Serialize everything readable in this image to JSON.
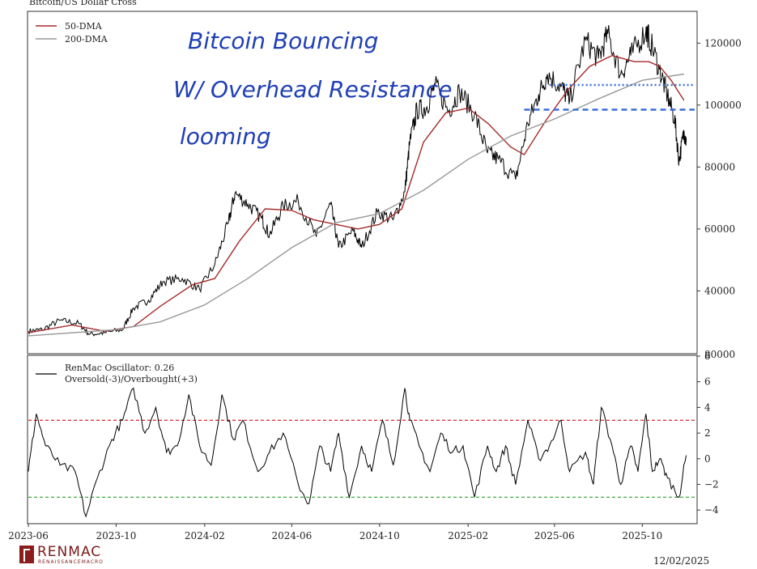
{
  "chart_data": [
    {
      "type": "line",
      "title": "Bitcoin/US Dollar Cross",
      "xlabel": "",
      "ylabel": "",
      "x_ticks": [
        "2023-06",
        "2023-10",
        "2024-02",
        "2024-06",
        "2024-10",
        "2025-02",
        "2025-06",
        "2025-10"
      ],
      "y_ticks": [
        120000,
        100000,
        80000,
        60000,
        40000
      ],
      "y_bottom_label": "80000",
      "ylim": [
        20000,
        130000
      ],
      "grid": false,
      "legend_position": "top-left",
      "series": [
        {
          "name": "",
          "color": "#000000",
          "x": [
            "2023-06-01",
            "2023-06-20",
            "2023-07-15",
            "2023-08-10",
            "2023-08-25",
            "2023-09-15",
            "2023-10-10",
            "2023-10-25",
            "2023-11-15",
            "2023-12-05",
            "2024-01-01",
            "2024-01-25",
            "2024-02-15",
            "2024-03-05",
            "2024-03-14",
            "2024-04-01",
            "2024-04-20",
            "2024-05-01",
            "2024-05-20",
            "2024-06-10",
            "2024-07-05",
            "2024-07-25",
            "2024-08-05",
            "2024-08-25",
            "2024-09-06",
            "2024-09-28",
            "2024-10-20",
            "2024-11-05",
            "2024-11-12",
            "2024-11-22",
            "2024-12-05",
            "2024-12-17",
            "2025-01-05",
            "2025-01-20",
            "2025-02-10",
            "2025-02-28",
            "2025-03-15",
            "2025-04-08",
            "2025-04-25",
            "2025-05-10",
            "2025-05-22",
            "2025-06-10",
            "2025-06-22",
            "2025-07-14",
            "2025-08-01",
            "2025-08-14",
            "2025-09-01",
            "2025-09-15",
            "2025-10-06",
            "2025-10-10",
            "2025-10-25",
            "2025-11-05",
            "2025-11-15",
            "2025-11-21",
            "2025-11-28",
            "2025-12-01"
          ],
          "values": [
            27000,
            27500,
            30500,
            29500,
            26000,
            26500,
            27500,
            34500,
            37000,
            43000,
            44000,
            40500,
            48500,
            62000,
            71500,
            68000,
            63500,
            58000,
            67500,
            69000,
            57500,
            68000,
            54000,
            59500,
            54000,
            65500,
            63000,
            72000,
            88000,
            98500,
            99000,
            106500,
            98000,
            104500,
            97000,
            84500,
            82500,
            76000,
            94000,
            103500,
            110000,
            106000,
            101500,
            121000,
            115000,
            123000,
            110000,
            116000,
            124000,
            122000,
            111500,
            103000,
            95500,
            82000,
            91500,
            88000
          ]
        },
        {
          "name": "50-DMA",
          "color": "#a52a2a",
          "x": [
            "2023-06-01",
            "2023-08-01",
            "2023-09-15",
            "2023-10-25",
            "2023-12-01",
            "2024-01-15",
            "2024-02-15",
            "2024-03-20",
            "2024-04-25",
            "2024-06-01",
            "2024-07-01",
            "2024-08-01",
            "2024-09-01",
            "2024-10-01",
            "2024-11-01",
            "2024-12-01",
            "2025-01-01",
            "2025-02-01",
            "2025-03-01",
            "2025-04-01",
            "2025-04-20",
            "2025-05-20",
            "2025-06-20",
            "2025-07-20",
            "2025-08-20",
            "2025-09-20",
            "2025-10-10",
            "2025-10-25",
            "2025-11-10",
            "2025-11-28"
          ],
          "values": [
            26500,
            29000,
            27000,
            28500,
            35000,
            42000,
            44000,
            56000,
            66500,
            66000,
            63000,
            61500,
            60000,
            61500,
            66500,
            88000,
            97500,
            99000,
            94000,
            86500,
            84000,
            95000,
            105000,
            112500,
            116000,
            114000,
            114000,
            112500,
            108000,
            101500
          ]
        },
        {
          "name": "200-DMA",
          "color": "#999999",
          "x": [
            "2023-06-01",
            "2023-10-01",
            "2023-12-01",
            "2024-02-01",
            "2024-04-01",
            "2024-06-01",
            "2024-08-01",
            "2024-10-01",
            "2024-12-01",
            "2025-02-01",
            "2025-04-01",
            "2025-06-01",
            "2025-08-01",
            "2025-10-01",
            "2025-11-28"
          ],
          "values": [
            25500,
            27500,
            30000,
            35500,
            44000,
            54000,
            62000,
            65000,
            72500,
            82500,
            90000,
            95500,
            102000,
            108000,
            110000
          ]
        }
      ],
      "annotations": [
        {
          "type": "hline",
          "value": 106500,
          "style": "dotted",
          "color": "#3a6fd8",
          "from": "2025-05-25"
        },
        {
          "type": "hline",
          "value": 98500,
          "style": "dashed",
          "color": "#3a6fd8",
          "from": "2025-04-20"
        },
        {
          "type": "text",
          "lines": [
            "Bitcoin Bouncing",
            "W/ Overhead Resistance",
            "looming"
          ],
          "color": "#1f3fb5"
        }
      ]
    },
    {
      "type": "line",
      "title": "",
      "xlabel": "",
      "ylabel": "",
      "ylim": [
        -5,
        8
      ],
      "y_ticks": [
        8,
        6,
        4,
        2,
        0,
        -2,
        -4
      ],
      "x_ticks": [
        "2023-06",
        "2023-10",
        "2024-02",
        "2024-06",
        "2024-10",
        "2025-02",
        "2025-06",
        "2025-10"
      ],
      "grid": false,
      "legend_position": "top-left",
      "series": [
        {
          "name": "RenMac Oscillator: 0.26",
          "color": "#000000",
          "x": [
            "2023-06-01",
            "2023-06-12",
            "2023-06-25",
            "2023-07-15",
            "2023-08-05",
            "2023-08-20",
            "2023-09-05",
            "2023-09-25",
            "2023-10-10",
            "2023-10-25",
            "2023-11-10",
            "2023-11-25",
            "2023-12-10",
            "2023-12-25",
            "2024-01-10",
            "2024-01-25",
            "2024-02-10",
            "2024-02-25",
            "2024-03-12",
            "2024-03-25",
            "2024-04-15",
            "2024-05-01",
            "2024-05-20",
            "2024-06-10",
            "2024-06-25",
            "2024-07-10",
            "2024-07-25",
            "2024-08-05",
            "2024-08-20",
            "2024-09-06",
            "2024-09-20",
            "2024-10-05",
            "2024-10-20",
            "2024-11-05",
            "2024-11-12",
            "2024-11-25",
            "2024-12-10",
            "2024-12-25",
            "2025-01-10",
            "2025-01-25",
            "2025-02-10",
            "2025-02-28",
            "2025-03-12",
            "2025-03-25",
            "2025-04-08",
            "2025-04-25",
            "2025-05-10",
            "2025-05-25",
            "2025-06-10",
            "2025-06-22",
            "2025-07-14",
            "2025-07-25",
            "2025-08-05",
            "2025-08-20",
            "2025-09-01",
            "2025-09-15",
            "2025-09-25",
            "2025-10-06",
            "2025-10-15",
            "2025-10-25",
            "2025-11-05",
            "2025-11-21",
            "2025-12-01"
          ],
          "values": [
            -1,
            3.5,
            1,
            -0.5,
            -1,
            -4.5,
            -1.5,
            1.5,
            3,
            5.5,
            2,
            4,
            0.5,
            1,
            5,
            1,
            -0.5,
            5,
            1.5,
            3,
            -1,
            0.5,
            2,
            -2,
            -3.5,
            1,
            -1,
            2,
            -3,
            1,
            -1,
            3,
            -0.5,
            5.5,
            3,
            1,
            -1,
            2,
            0.5,
            1,
            -3,
            1,
            -1,
            1,
            -2,
            3,
            0,
            1,
            3,
            -1,
            0.5,
            -2,
            4,
            1,
            -2,
            1,
            -1,
            3.5,
            -1,
            0,
            -1.5,
            -3,
            0.26
          ]
        },
        {
          "name": "Oversold(-3)/Overbought(+3)",
          "color": "#000000",
          "x": [],
          "values": []
        }
      ],
      "annotations": [
        {
          "type": "hline",
          "value": 3,
          "style": "dashed",
          "color": "#d62728"
        },
        {
          "type": "hline",
          "value": -3,
          "style": "dashed",
          "color": "#2ca02c"
        }
      ]
    }
  ],
  "footer": {
    "brand": "RENMAC",
    "brand_sub": "RENAISSANCEMACRO",
    "date": "12/02/2025"
  }
}
